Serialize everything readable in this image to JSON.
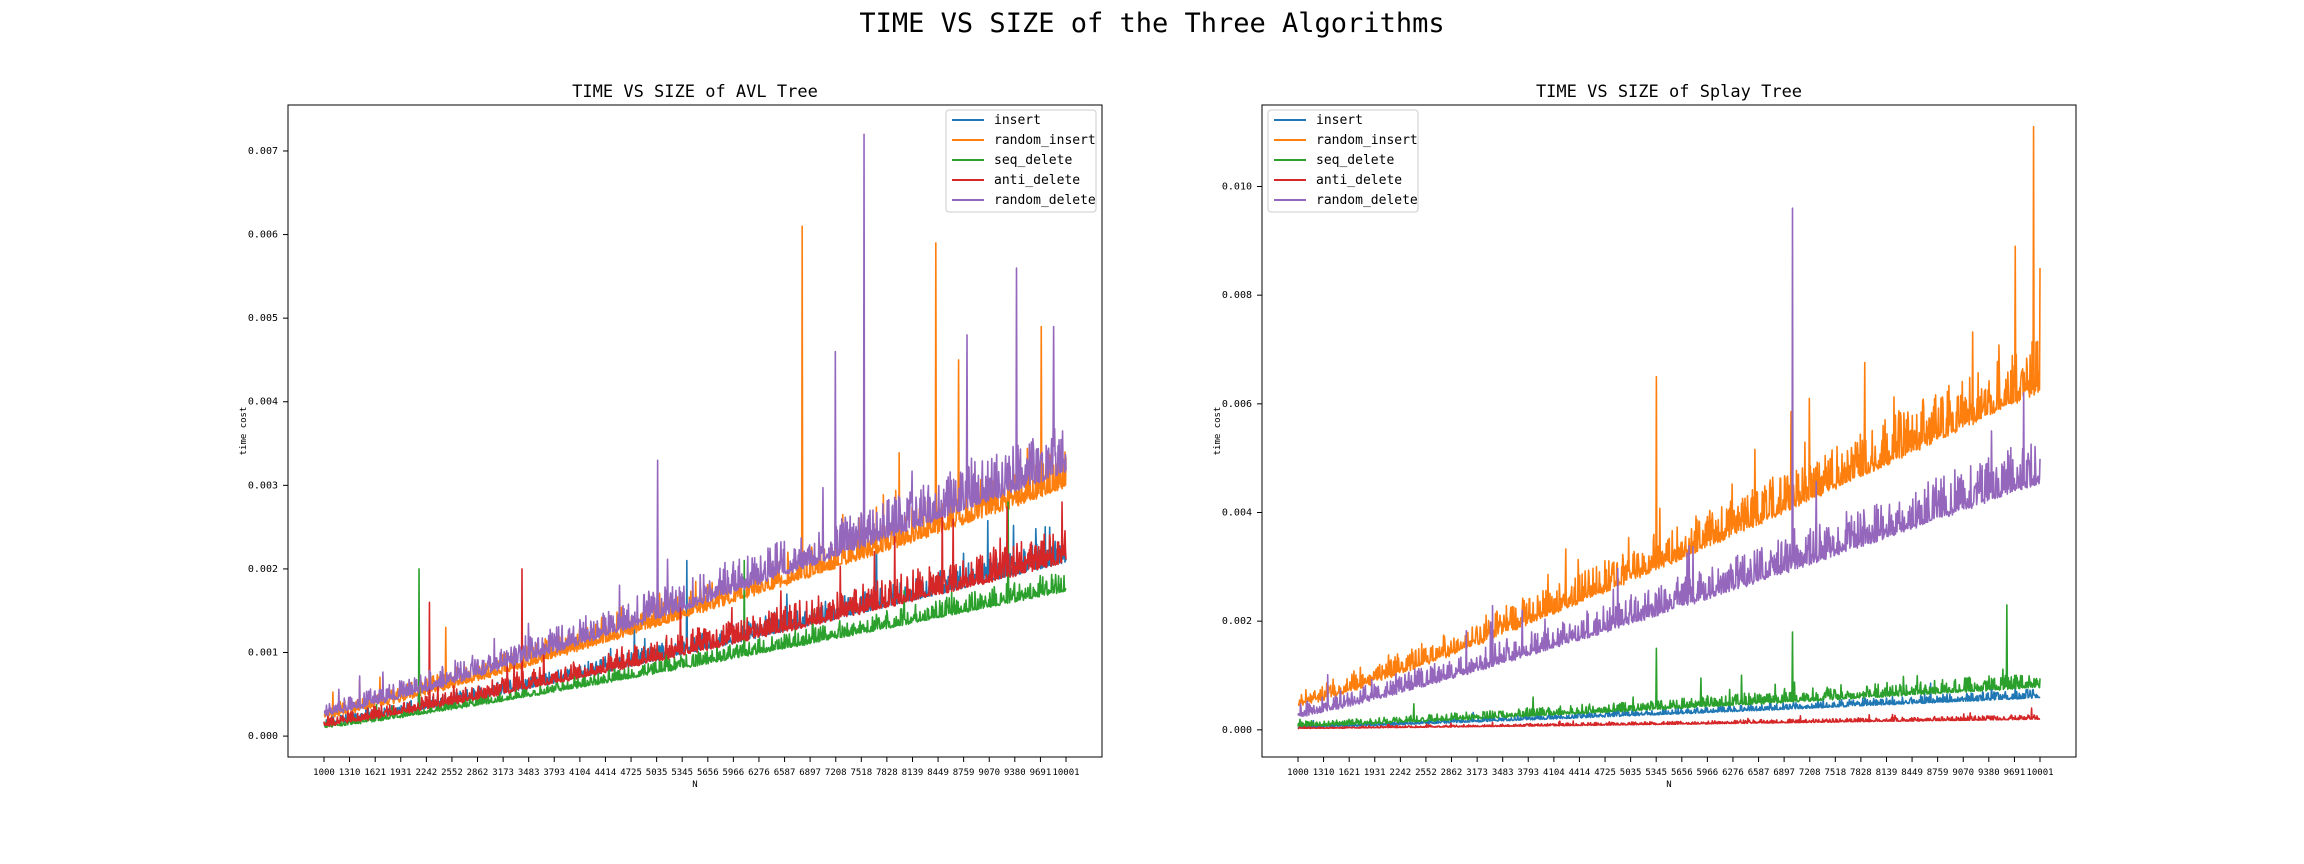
{
  "suptitle": "TIME VS SIZE of the Three Algorithms",
  "x_ticks": [
    "1000",
    "1310",
    "1621",
    "1931",
    "2242",
    "2552",
    "2862",
    "3173",
    "3483",
    "3793",
    "4104",
    "4414",
    "4725",
    "5035",
    "5345",
    "5656",
    "5966",
    "6276",
    "6587",
    "6897",
    "7208",
    "7518",
    "7828",
    "8139",
    "8449",
    "8759",
    "9070",
    "9380",
    "9691",
    "10001"
  ],
  "chart_data": [
    {
      "type": "line",
      "title": "TIME VS SIZE of AVL Tree",
      "xlabel": "N",
      "ylabel": "time cost",
      "xlim": [
        1000,
        10001
      ],
      "ylim": [
        -0.00025,
        0.00755
      ],
      "y_ticks": [
        "0.000",
        "0.001",
        "0.002",
        "0.003",
        "0.004",
        "0.005",
        "0.006",
        "0.007"
      ],
      "legend_position": "upper right",
      "grid": false,
      "series": [
        {
          "name": "insert",
          "color": "#1f77b4",
          "start": 0.00015,
          "end": 0.0021,
          "noise": 0.00022,
          "spikes": [
            [
              5400,
              0.0021
            ],
            [
              7700,
              0.0024
            ],
            [
              9800,
              0.0025
            ],
            [
              9950,
              0.0024
            ]
          ]
        },
        {
          "name": "random_insert",
          "color": "#ff7f0e",
          "start": 0.00025,
          "end": 0.003,
          "noise": 0.00035,
          "spikes": [
            [
              2480,
              0.0013
            ],
            [
              6800,
              0.0061
            ],
            [
              8420,
              0.0059
            ],
            [
              9700,
              0.0049
            ],
            [
              8700,
              0.0045
            ]
          ]
        },
        {
          "name": "seq_delete",
          "color": "#2ca02c",
          "start": 0.00012,
          "end": 0.00175,
          "noise": 0.00018,
          "spikes": [
            [
              2150,
              0.002
            ],
            [
              6100,
              0.0021
            ],
            [
              9300,
              0.0028
            ]
          ]
        },
        {
          "name": "anti_delete",
          "color": "#d62728",
          "start": 0.00015,
          "end": 0.0021,
          "noise": 0.0003,
          "spikes": [
            [
              2280,
              0.0016
            ],
            [
              3400,
              0.002
            ],
            [
              8500,
              0.0027
            ],
            [
              9950,
              0.0028
            ]
          ]
        },
        {
          "name": "random_delete",
          "color": "#9467bd",
          "start": 0.00028,
          "end": 0.0032,
          "noise": 0.0004,
          "spikes": [
            [
              5050,
              0.0033
            ],
            [
              7200,
              0.0046
            ],
            [
              7550,
              0.0072
            ],
            [
              8800,
              0.0048
            ],
            [
              9400,
              0.0056
            ],
            [
              9850,
              0.0049
            ]
          ]
        }
      ]
    },
    {
      "type": "line",
      "title": "TIME VS SIZE of Splay Tree",
      "xlabel": "N",
      "ylabel": "time cost",
      "xlim": [
        1000,
        10001
      ],
      "ylim": [
        -0.0005,
        0.0115
      ],
      "y_ticks": [
        "0.000",
        "0.002",
        "0.004",
        "0.006",
        "0.008",
        "0.010"
      ],
      "legend_position": "upper left",
      "grid": false,
      "series": [
        {
          "name": "insert",
          "color": "#1f77b4",
          "start": 5e-05,
          "end": 0.0006,
          "noise": 0.00012,
          "spikes": [
            [
              9700,
              0.0008
            ]
          ]
        },
        {
          "name": "random_insert",
          "color": "#ff7f0e",
          "start": 0.0005,
          "end": 0.0063,
          "noise": 0.0007,
          "spikes": [
            [
              5350,
              0.0065
            ],
            [
              9700,
              0.0089
            ],
            [
              9920,
              0.0111
            ],
            [
              10000,
              0.0085
            ]
          ]
        },
        {
          "name": "seq_delete",
          "color": "#2ca02c",
          "start": 8e-05,
          "end": 0.0008,
          "noise": 0.0002,
          "spikes": [
            [
              5350,
              0.0015
            ],
            [
              7000,
              0.0018
            ],
            [
              9600,
              0.0023
            ]
          ]
        },
        {
          "name": "anti_delete",
          "color": "#d62728",
          "start": 3e-05,
          "end": 0.0002,
          "noise": 6e-05,
          "spikes": [
            [
              9900,
              0.0004
            ]
          ]
        },
        {
          "name": "random_delete",
          "color": "#9467bd",
          "start": 0.0003,
          "end": 0.0046,
          "noise": 0.0006,
          "spikes": [
            [
              7000,
              0.0096
            ],
            [
              9800,
              0.0062
            ]
          ]
        }
      ]
    }
  ]
}
